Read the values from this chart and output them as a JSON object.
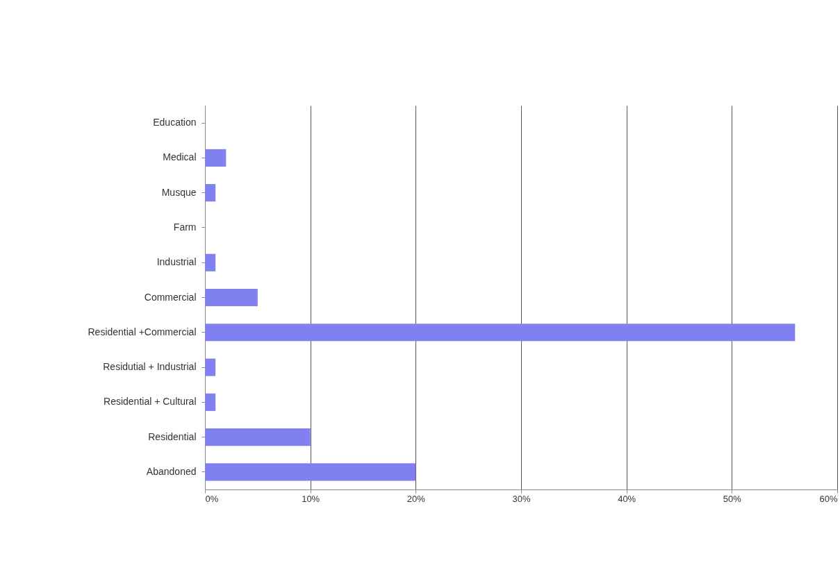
{
  "chart_data": {
    "type": "bar",
    "orientation": "horizontal",
    "categories": [
      "Education",
      "Medical",
      "Musque",
      "Farm",
      "Industrial",
      "Commercial",
      "Residential +Commercial",
      "Residutial + Industrial",
      "Residential + Cultural",
      "Residential",
      "Abandoned"
    ],
    "values": [
      0,
      2,
      1,
      0,
      1,
      5,
      56,
      1,
      1,
      10,
      20
    ],
    "color": "#8080f0",
    "xlim": [
      0,
      60
    ],
    "xticks": [
      {
        "value": 0,
        "label": "0%"
      },
      {
        "value": 10,
        "label": "10%"
      },
      {
        "value": 20,
        "label": "20%"
      },
      {
        "value": 30,
        "label": "30%"
      },
      {
        "value": 40,
        "label": "40%"
      },
      {
        "value": 50,
        "label": "50%"
      },
      {
        "value": 60,
        "label": "60%"
      }
    ],
    "grid": "x"
  }
}
